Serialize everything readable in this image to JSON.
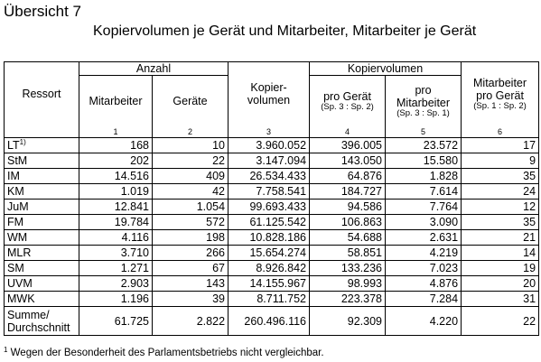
{
  "header": {
    "overview_label": "Übersicht 7",
    "title": "Kopiervolumen je Gerät und Mitarbeiter, Mitarbeiter je Gerät"
  },
  "table": {
    "col_ressort": "Ressort",
    "group_anzahl": "Anzahl",
    "group_kopiervolumen": "Kopiervolumen",
    "col_mitarbeiter": "Mitarbeiter",
    "col_geraete": "Geräte",
    "col_kopiervolumen_line1": "Kopier-",
    "col_kopiervolumen_line2": "volumen",
    "col_pro_geraet": "pro Gerät",
    "col_pro_geraet_note": "(Sp. 3 : Sp. 2)",
    "col_pro_mitarbeiter_line1": "pro",
    "col_pro_mitarbeiter_line2": "Mitarbeiter",
    "col_pro_mitarbeiter_note": "(Sp. 3 : Sp. 1)",
    "col_mitarbeiter_pro_geraet_line1": "Mitarbeiter",
    "col_mitarbeiter_pro_geraet_line2": "pro Gerät",
    "col_mitarbeiter_pro_geraet_note": "(Sp. 1 : Sp. 2)",
    "col_numbers": [
      "1",
      "2",
      "3",
      "4",
      "5",
      "6"
    ],
    "rows": [
      {
        "ressort": "LT",
        "footnote_mark": "1)",
        "mitarbeiter": "168",
        "geraete": "10",
        "kopiervolumen": "3.960.052",
        "pro_geraet": "396.005",
        "pro_mitarbeiter": "23.572",
        "mitarbeiter_pro_geraet": "17"
      },
      {
        "ressort": "StM",
        "mitarbeiter": "202",
        "geraete": "22",
        "kopiervolumen": "3.147.094",
        "pro_geraet": "143.050",
        "pro_mitarbeiter": "15.580",
        "mitarbeiter_pro_geraet": "9"
      },
      {
        "ressort": "IM",
        "mitarbeiter": "14.516",
        "geraete": "409",
        "kopiervolumen": "26.534.433",
        "pro_geraet": "64.876",
        "pro_mitarbeiter": "1.828",
        "mitarbeiter_pro_geraet": "35"
      },
      {
        "ressort": "KM",
        "mitarbeiter": "1.019",
        "geraete": "42",
        "kopiervolumen": "7.758.541",
        "pro_geraet": "184.727",
        "pro_mitarbeiter": "7.614",
        "mitarbeiter_pro_geraet": "24"
      },
      {
        "ressort": "JuM",
        "mitarbeiter": "12.841",
        "geraete": "1.054",
        "kopiervolumen": "99.693.433",
        "pro_geraet": "94.586",
        "pro_mitarbeiter": "7.764",
        "mitarbeiter_pro_geraet": "12"
      },
      {
        "ressort": "FM",
        "mitarbeiter": "19.784",
        "geraete": "572",
        "kopiervolumen": "61.125.542",
        "pro_geraet": "106.863",
        "pro_mitarbeiter": "3.090",
        "mitarbeiter_pro_geraet": "35"
      },
      {
        "ressort": "WM",
        "mitarbeiter": "4.116",
        "geraete": "198",
        "kopiervolumen": "10.828.186",
        "pro_geraet": "54.688",
        "pro_mitarbeiter": "2.631",
        "mitarbeiter_pro_geraet": "21"
      },
      {
        "ressort": "MLR",
        "mitarbeiter": "3.710",
        "geraete": "266",
        "kopiervolumen": "15.654.274",
        "pro_geraet": "58.851",
        "pro_mitarbeiter": "4.219",
        "mitarbeiter_pro_geraet": "14"
      },
      {
        "ressort": "SM",
        "mitarbeiter": "1.271",
        "geraete": "67",
        "kopiervolumen": "8.926.842",
        "pro_geraet": "133.236",
        "pro_mitarbeiter": "7.023",
        "mitarbeiter_pro_geraet": "19"
      },
      {
        "ressort": "UVM",
        "mitarbeiter": "2.903",
        "geraete": "143",
        "kopiervolumen": "14.155.967",
        "pro_geraet": "98.993",
        "pro_mitarbeiter": "4.876",
        "mitarbeiter_pro_geraet": "20"
      },
      {
        "ressort": "MWK",
        "mitarbeiter": "1.196",
        "geraete": "39",
        "kopiervolumen": "8.711.752",
        "pro_geraet": "223.378",
        "pro_mitarbeiter": "7.284",
        "mitarbeiter_pro_geraet": "31"
      }
    ],
    "summary": {
      "label_line1": "Summe/",
      "label_line2": "Durchschnitt",
      "mitarbeiter": "61.725",
      "geraete": "2.822",
      "kopiervolumen": "260.496.116",
      "pro_geraet": "92.309",
      "pro_mitarbeiter": "4.220",
      "mitarbeiter_pro_geraet": "22"
    }
  },
  "footnote": {
    "mark": "1",
    "text": " Wegen der Besonderheit des Parlamentsbetriebs nicht vergleichbar."
  }
}
